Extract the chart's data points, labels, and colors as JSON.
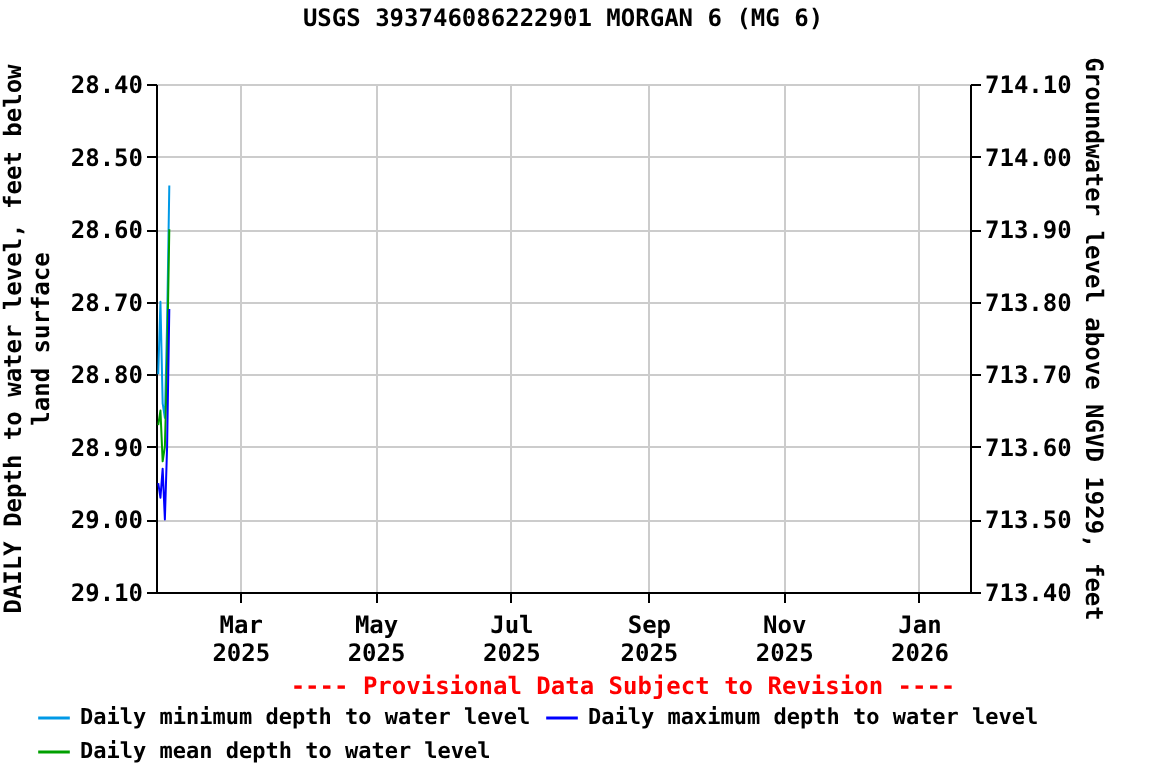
{
  "chart_data": {
    "type": "line",
    "title": "USGS 393746086222901 MORGAN 6 (MG 6)",
    "ylabel": "DAILY Depth to water level, feet below land surface",
    "y2label": "Groundwater level above NGVD 1929, feet",
    "annotations": [
      "---- Provisional Data Subject to Revision ----"
    ],
    "x": [
      "2025-01-23",
      "2025-01-24",
      "2025-01-25",
      "2025-01-26",
      "2025-01-27",
      "2025-01-28"
    ],
    "series": [
      {
        "name": "Daily minimum depth to water level",
        "color": "#0099e6",
        "values": [
          28.8,
          28.7,
          28.84,
          28.86,
          28.73,
          28.54
        ]
      },
      {
        "name": "Daily mean depth to water level",
        "color": "#00a000",
        "values": [
          28.87,
          28.85,
          28.92,
          28.9,
          28.78,
          28.6
        ]
      },
      {
        "name": "Daily maximum depth to water level",
        "color": "#0000ff",
        "values": [
          28.95,
          28.97,
          28.93,
          29.0,
          28.9,
          28.71
        ]
      }
    ],
    "xlim": [
      "2025-01-22",
      "2026-01-24"
    ],
    "xticks": [
      {
        "value": "2025-03-01",
        "label": "Mar 2025"
      },
      {
        "value": "2025-05-01",
        "label": "May 2025"
      },
      {
        "value": "2025-07-01",
        "label": "Jul 2025"
      },
      {
        "value": "2025-09-01",
        "label": "Sep 2025"
      },
      {
        "value": "2025-11-01",
        "label": "Nov 2025"
      },
      {
        "value": "2026-01-01",
        "label": "Jan 2026"
      }
    ],
    "ylim": [
      29.1,
      28.4
    ],
    "yticks": [
      {
        "value": 28.4,
        "label": "28.40"
      },
      {
        "value": 28.5,
        "label": "28.50"
      },
      {
        "value": 28.6,
        "label": "28.60"
      },
      {
        "value": 28.7,
        "label": "28.70"
      },
      {
        "value": 28.8,
        "label": "28.80"
      },
      {
        "value": 28.9,
        "label": "28.90"
      },
      {
        "value": 29.0,
        "label": "29.00"
      },
      {
        "value": 29.1,
        "label": "29.10"
      }
    ],
    "y2lim": [
      713.4,
      714.1
    ],
    "y2ticks": [
      {
        "value": 713.4,
        "label": "713.40"
      },
      {
        "value": 713.5,
        "label": "713.50"
      },
      {
        "value": 713.6,
        "label": "713.60"
      },
      {
        "value": 713.7,
        "label": "713.70"
      },
      {
        "value": 713.8,
        "label": "713.80"
      },
      {
        "value": 713.9,
        "label": "713.90"
      },
      {
        "value": 714.0,
        "label": "714.00"
      },
      {
        "value": 714.1,
        "label": "714.10"
      }
    ],
    "grid": true,
    "legend": "bottom",
    "marker": "none",
    "line_style": "solid"
  }
}
